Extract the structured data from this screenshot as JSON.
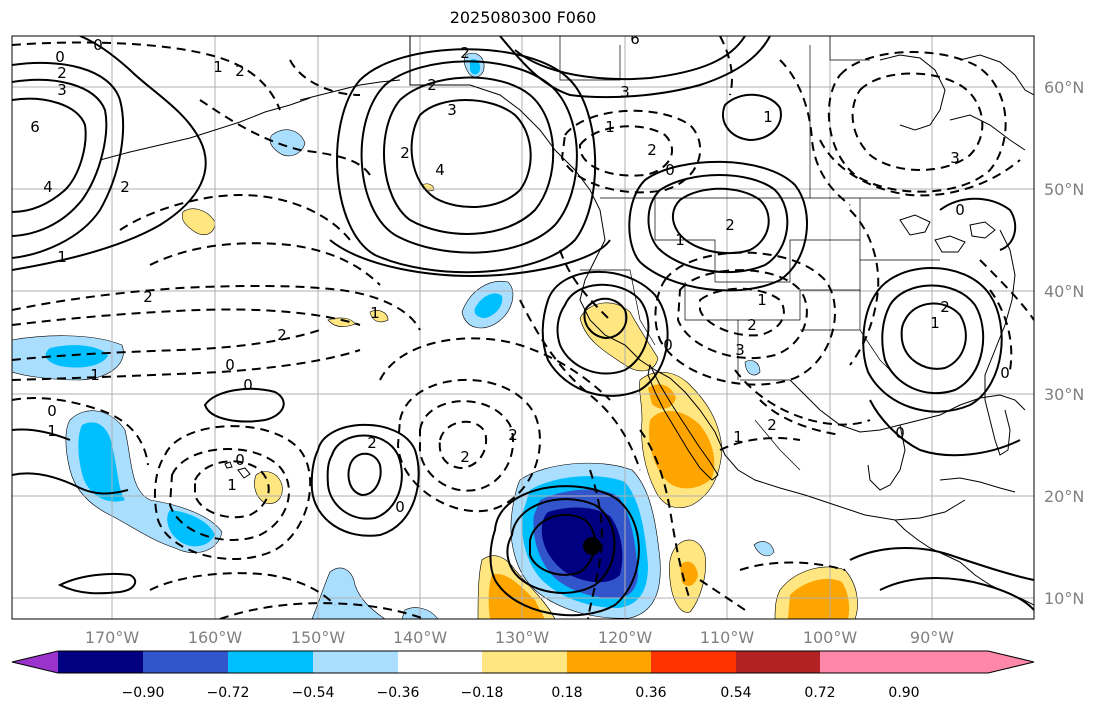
{
  "title": "2025080300 F060",
  "lat_labels": [
    "60°N",
    "50°N",
    "40°N",
    "30°N",
    "20°N",
    "10°N"
  ],
  "lon_labels": [
    "170°W",
    "160°W",
    "150°W",
    "140°W",
    "130°W",
    "120°W",
    "110°W",
    "100°W",
    "90°W"
  ],
  "colorbar": {
    "ticks": [
      "−0.90",
      "−0.72",
      "−0.54",
      "−0.36",
      "−0.18",
      "0.18",
      "0.36",
      "0.54",
      "0.72",
      "0.90"
    ],
    "colors": [
      "#9933cc",
      "#000080",
      "#3355cc",
      "#00bfff",
      "#aadeff",
      "#ffffff",
      "#ffe680",
      "#ffa500",
      "#ff3300",
      "#b22222",
      "#ff88aa"
    ]
  },
  "contour_labels": [
    "0",
    "2",
    "3",
    "6",
    "4",
    "1",
    "0",
    "2",
    "1",
    "2",
    "2",
    "4",
    "3",
    "2",
    "2",
    "6",
    "1",
    "2",
    "0",
    "3",
    "1",
    "1",
    "2",
    "1",
    "3",
    "0",
    "2",
    "1",
    "3",
    "2",
    "0",
    "2",
    "0",
    "0",
    "2",
    "1",
    "0",
    "2",
    "1",
    "0",
    "2",
    "2",
    "1",
    "2",
    "0",
    "0",
    "0",
    "1",
    "1"
  ],
  "colors": {
    "coast": "#000000",
    "grid": "#b0b0b0",
    "contour": "#000000"
  }
}
